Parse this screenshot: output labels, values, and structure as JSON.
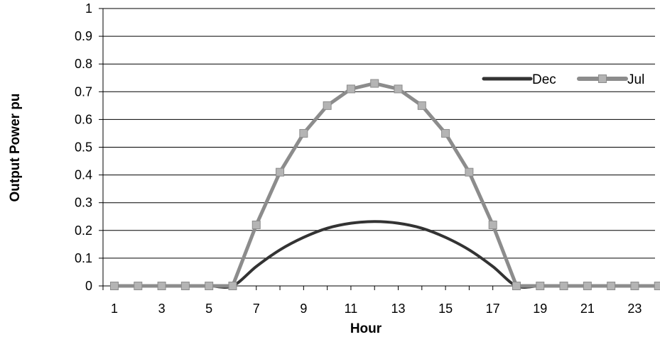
{
  "chart_data": {
    "type": "line",
    "title": "",
    "xlabel": "Hour",
    "ylabel": "Output Power pu",
    "x": [
      1,
      2,
      3,
      4,
      5,
      6,
      7,
      8,
      9,
      10,
      11,
      12,
      13,
      14,
      15,
      16,
      17,
      18,
      19,
      20,
      21,
      22,
      23,
      24
    ],
    "x_tick_labels": [
      "1",
      "3",
      "5",
      "7",
      "9",
      "11",
      "13",
      "15",
      "17",
      "19",
      "21",
      "23"
    ],
    "y_tick_labels": [
      "0",
      "0.1",
      "0.2",
      "0.3",
      "0.4",
      "0.5",
      "0.6",
      "0.7",
      "0.8",
      "0.9",
      "1"
    ],
    "xlim": [
      1,
      24
    ],
    "ylim": [
      0,
      1
    ],
    "grid": true,
    "legend_position": "top-right",
    "series": [
      {
        "name": "Dec",
        "color": "#333333",
        "marker": "none",
        "values": [
          0,
          0,
          0,
          0,
          0,
          0,
          0.07,
          0.13,
          0.175,
          0.208,
          0.226,
          0.232,
          0.226,
          0.208,
          0.175,
          0.13,
          0.07,
          0,
          0,
          0,
          0,
          0,
          0,
          0
        ]
      },
      {
        "name": "Jul",
        "color": "#8c8c8c",
        "marker": "square",
        "marker_color": "#b4b4b4",
        "values": [
          0,
          0,
          0,
          0,
          0,
          0,
          0.22,
          0.41,
          0.55,
          0.65,
          0.71,
          0.73,
          0.71,
          0.65,
          0.55,
          0.41,
          0.22,
          0,
          0,
          0,
          0,
          0,
          0,
          0
        ]
      }
    ]
  }
}
